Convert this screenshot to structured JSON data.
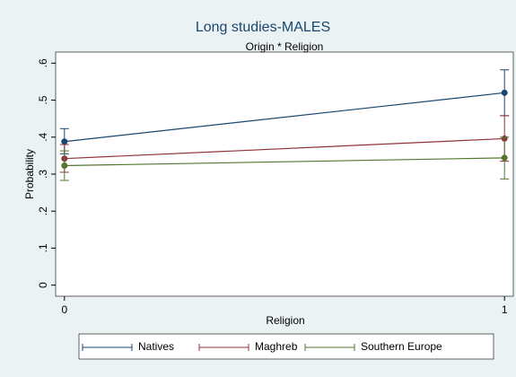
{
  "chart_data": {
    "type": "line",
    "title": "Long studies-MALES",
    "subtitle": "Origin * Religion",
    "x_label": "Religion",
    "y_label": "Probability",
    "x": [
      0,
      1
    ],
    "xlim": [
      -0.02,
      1.02
    ],
    "xticks": [
      0,
      1
    ],
    "ylim": [
      -0.03,
      0.63
    ],
    "yticks": [
      0,
      {
        "value": 0.1,
        "label": ".1"
      },
      {
        "value": 0.2,
        "label": ".2"
      },
      {
        "value": 0.3,
        "label": ".3"
      },
      {
        "value": 0.4,
        "label": ".4"
      },
      {
        "value": 0.5,
        "label": ".5"
      },
      {
        "value": 0.6,
        "label": ".6"
      }
    ],
    "series": [
      {
        "name": "Natives",
        "color": "#1a476f",
        "values": [
          0.388,
          0.52
        ],
        "lower": [
          0.355,
          0.458
        ],
        "upper": [
          0.423,
          0.582
        ]
      },
      {
        "name": "Maghreb",
        "color": "#90353b",
        "values": [
          0.342,
          0.396
        ],
        "lower": [
          0.305,
          0.335
        ],
        "upper": [
          0.38,
          0.458
        ]
      },
      {
        "name": "Southern Europe",
        "color": "#55752f",
        "values": [
          0.323,
          0.344
        ],
        "lower": [
          0.283,
          0.287
        ],
        "upper": [
          0.363,
          0.4
        ]
      }
    ]
  }
}
